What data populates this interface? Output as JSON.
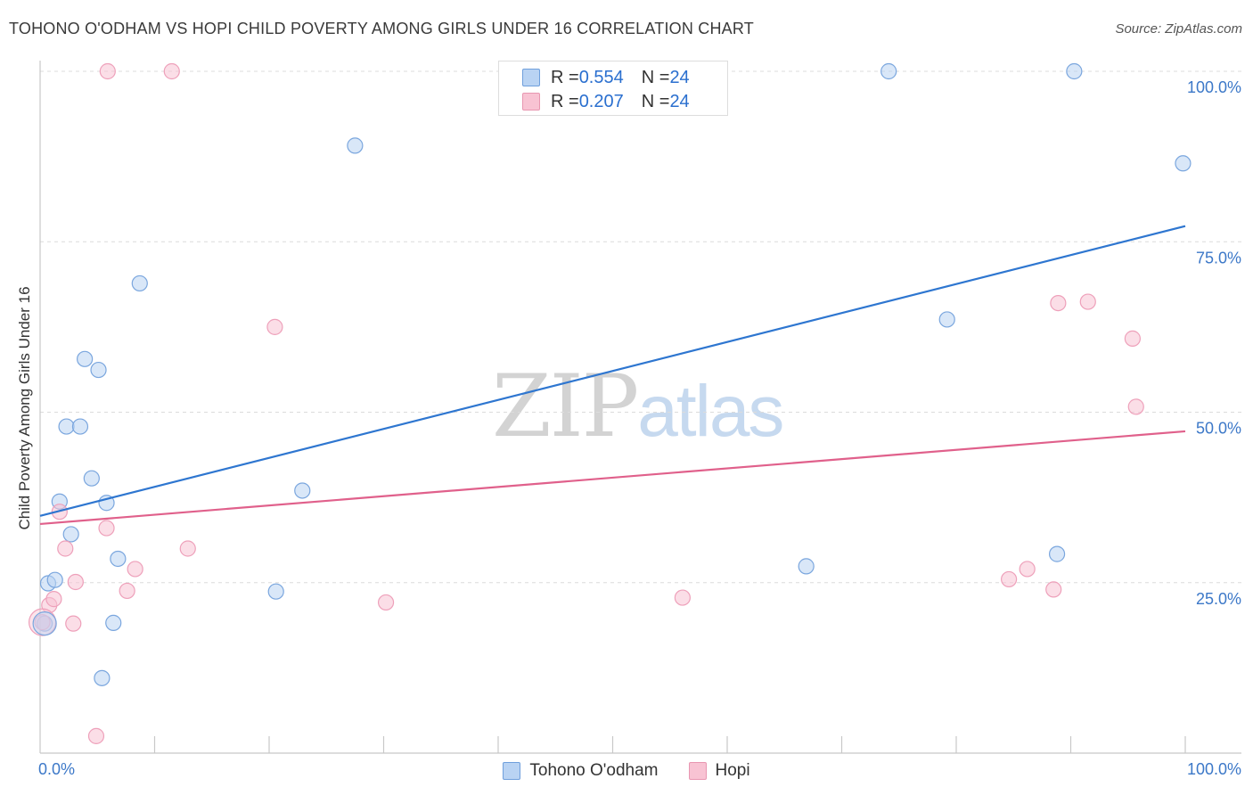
{
  "title": "TOHONO O'ODHAM VS HOPI CHILD POVERTY AMONG GIRLS UNDER 16 CORRELATION CHART",
  "source": "Source: ZipAtlas.com",
  "watermark": {
    "zip": "ZIP",
    "atlas": "atlas"
  },
  "legend": {
    "rows": [
      {
        "r_label": "R = ",
        "r_value": "0.554",
        "n_label": "N = ",
        "n_value": "24"
      },
      {
        "r_label": "R = ",
        "r_value": "0.207",
        "n_label": "N = ",
        "n_value": "24"
      }
    ]
  },
  "chart_data": {
    "type": "scatter",
    "title": "TOHONO O'ODHAM VS HOPI CHILD POVERTY AMONG GIRLS UNDER 16 CORRELATION CHART",
    "xlabel": "",
    "ylabel": "Child Poverty Among Girls Under 16",
    "xlim": [
      0,
      100
    ],
    "ylim": [
      0,
      100
    ],
    "x_tick_labels": [
      {
        "value": 0,
        "label": "0.0%"
      },
      {
        "value": 100,
        "label": "100.0%"
      }
    ],
    "y_tick_labels": [
      {
        "value": 25,
        "label": "25.0%"
      },
      {
        "value": 50,
        "label": "50.0%"
      },
      {
        "value": 75,
        "label": "75.0%"
      },
      {
        "value": 100,
        "label": "100.0%"
      }
    ],
    "grid": true,
    "series": [
      {
        "name": "Tohono O'odham",
        "color": "#2e76d0",
        "fill": "#b9d3f3",
        "trend": {
          "x0": 0,
          "y0": 34.8,
          "x1": 100,
          "y1": 77.3
        },
        "points": [
          {
            "x": 0.4,
            "y": 19.0
          },
          {
            "x": 0.7,
            "y": 24.9
          },
          {
            "x": 1.3,
            "y": 25.4
          },
          {
            "x": 1.7,
            "y": 36.9
          },
          {
            "x": 2.3,
            "y": 47.9
          },
          {
            "x": 2.7,
            "y": 32.1
          },
          {
            "x": 3.5,
            "y": 47.9
          },
          {
            "x": 3.9,
            "y": 57.8
          },
          {
            "x": 4.5,
            "y": 40.3
          },
          {
            "x": 5.1,
            "y": 56.2
          },
          {
            "x": 5.4,
            "y": 11.0
          },
          {
            "x": 5.8,
            "y": 36.7
          },
          {
            "x": 6.4,
            "y": 19.1
          },
          {
            "x": 6.8,
            "y": 28.5
          },
          {
            "x": 8.7,
            "y": 68.9
          },
          {
            "x": 20.6,
            "y": 23.7
          },
          {
            "x": 22.9,
            "y": 38.5
          },
          {
            "x": 27.5,
            "y": 89.1
          },
          {
            "x": 66.9,
            "y": 27.4
          },
          {
            "x": 74.1,
            "y": 100.0
          },
          {
            "x": 79.2,
            "y": 63.6
          },
          {
            "x": 88.8,
            "y": 29.2
          },
          {
            "x": 90.3,
            "y": 100.0
          },
          {
            "x": 99.8,
            "y": 86.5
          }
        ]
      },
      {
        "name": "Hopi",
        "color": "#e0608b",
        "fill": "#f8c3d3",
        "trend": {
          "x0": 0,
          "y0": 33.6,
          "x1": 100,
          "y1": 47.2
        },
        "points": [
          {
            "x": 0.2,
            "y": 19.2
          },
          {
            "x": 0.8,
            "y": 21.7
          },
          {
            "x": 1.2,
            "y": 22.6
          },
          {
            "x": 1.7,
            "y": 35.4
          },
          {
            "x": 2.2,
            "y": 30.0
          },
          {
            "x": 2.9,
            "y": 19.0
          },
          {
            "x": 3.1,
            "y": 25.1
          },
          {
            "x": 4.9,
            "y": 2.5
          },
          {
            "x": 5.8,
            "y": 33.0
          },
          {
            "x": 5.9,
            "y": 100.0
          },
          {
            "x": 7.6,
            "y": 23.8
          },
          {
            "x": 8.3,
            "y": 27.0
          },
          {
            "x": 11.5,
            "y": 100.0
          },
          {
            "x": 12.9,
            "y": 30.0
          },
          {
            "x": 20.5,
            "y": 62.5
          },
          {
            "x": 30.2,
            "y": 22.1
          },
          {
            "x": 56.1,
            "y": 22.8
          },
          {
            "x": 84.6,
            "y": 25.5
          },
          {
            "x": 86.2,
            "y": 27.0
          },
          {
            "x": 88.5,
            "y": 24.0
          },
          {
            "x": 88.9,
            "y": 66.0
          },
          {
            "x": 91.5,
            "y": 66.2
          },
          {
            "x": 95.4,
            "y": 60.8
          },
          {
            "x": 95.7,
            "y": 50.8
          }
        ]
      }
    ]
  }
}
